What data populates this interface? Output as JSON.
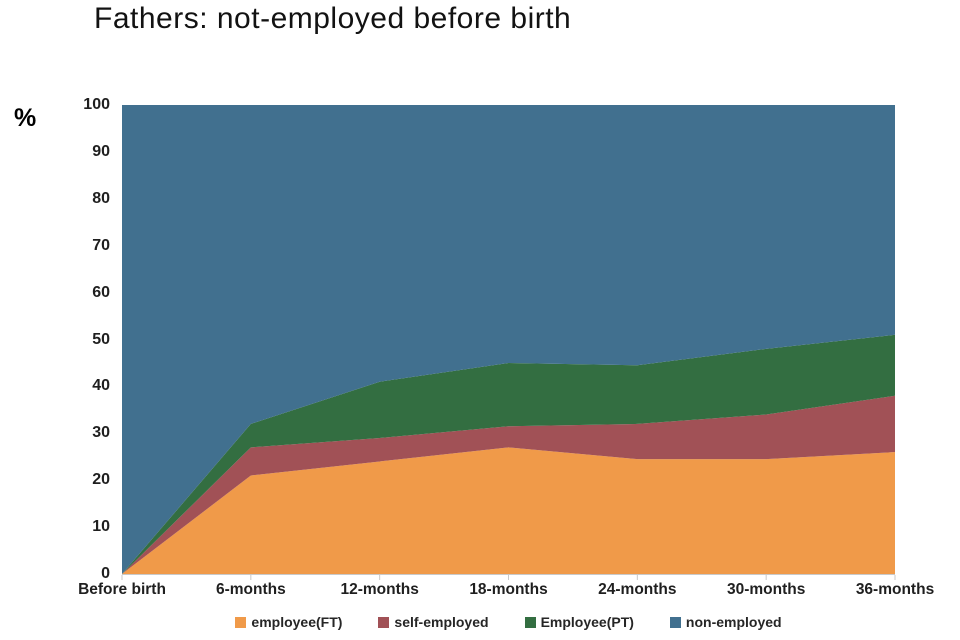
{
  "title": "Fathers: not-employed before birth",
  "y_axis": {
    "unit": "%"
  },
  "chart_data": {
    "type": "area",
    "stacked": true,
    "title": "Fathers: not-employed before birth",
    "xlabel": "",
    "ylabel": "%",
    "ylim": [
      0,
      100
    ],
    "yticks": [
      0,
      10,
      20,
      30,
      40,
      50,
      60,
      70,
      80,
      90,
      100
    ],
    "grid": false,
    "legend_position": "bottom",
    "categories": [
      "Before birth",
      "6-months",
      "12-months",
      "18-months",
      "24-months",
      "30-months",
      "36-months"
    ],
    "series": [
      {
        "name": "employee(FT)",
        "color": "#F09A49",
        "values": [
          0,
          21,
          24,
          27,
          24.5,
          24.5,
          26
        ]
      },
      {
        "name": "self-employed",
        "color": "#A15156",
        "values": [
          0,
          6,
          5,
          4.5,
          7.5,
          9.5,
          12
        ]
      },
      {
        "name": "Employee(PT)",
        "color": "#336E41",
        "values": [
          0,
          5,
          12,
          13.5,
          12.5,
          14,
          13
        ]
      },
      {
        "name": "non-employed",
        "color": "#41708F",
        "values": [
          100,
          68,
          59,
          55,
          55.5,
          52,
          49
        ]
      }
    ],
    "axis_color": "#c9c9c9"
  }
}
